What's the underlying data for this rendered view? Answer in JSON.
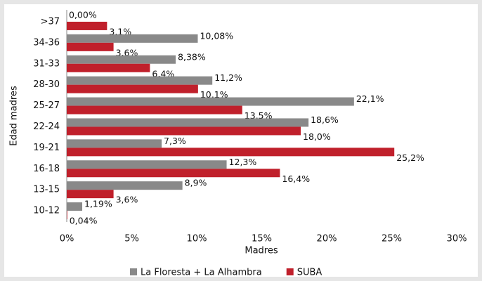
{
  "chart_data": {
    "type": "bar",
    "orientation": "horizontal",
    "y_axis_label": "Edad madres",
    "x_axis_label": "Madres",
    "categories": [
      ">37",
      "34-36",
      "31-33",
      "28-30",
      "25-27",
      "22-24",
      "19-21",
      "16-18",
      "13-15",
      "10-12"
    ],
    "series": [
      {
        "name": "La Floresta + La Alhambra",
        "color": "#898989",
        "values": [
          0.0,
          10.08,
          8.38,
          11.2,
          22.1,
          18.6,
          7.3,
          12.3,
          8.9,
          1.19
        ],
        "value_labels": [
          "0,00%",
          "10,08%",
          "8,38%",
          "11,2%",
          "22,1%",
          "18,6%",
          "7,3%",
          "12,3%",
          "8,9%",
          "1,19%"
        ]
      },
      {
        "name": "SUBA",
        "color": "#c0202b",
        "values": [
          3.1,
          3.6,
          6.4,
          10.1,
          13.5,
          18.0,
          25.2,
          16.4,
          3.6,
          0.04
        ],
        "value_labels": [
          "3,1%",
          "3,6%",
          "6,4%",
          "10,1%",
          "13,5%",
          "18,0%",
          "25,2%",
          "16,4%",
          "3,6%",
          "0,04%"
        ]
      }
    ],
    "xlim": [
      0,
      30
    ],
    "xticks": [
      {
        "value": 0,
        "label": "0%"
      },
      {
        "value": 5,
        "label": "5%"
      },
      {
        "value": 10,
        "label": "10%"
      },
      {
        "value": 15,
        "label": "15%"
      },
      {
        "value": 20,
        "label": "20%"
      },
      {
        "value": 25,
        "label": "25%"
      },
      {
        "value": 30,
        "label": "30%"
      }
    ],
    "legend": "bottom"
  }
}
